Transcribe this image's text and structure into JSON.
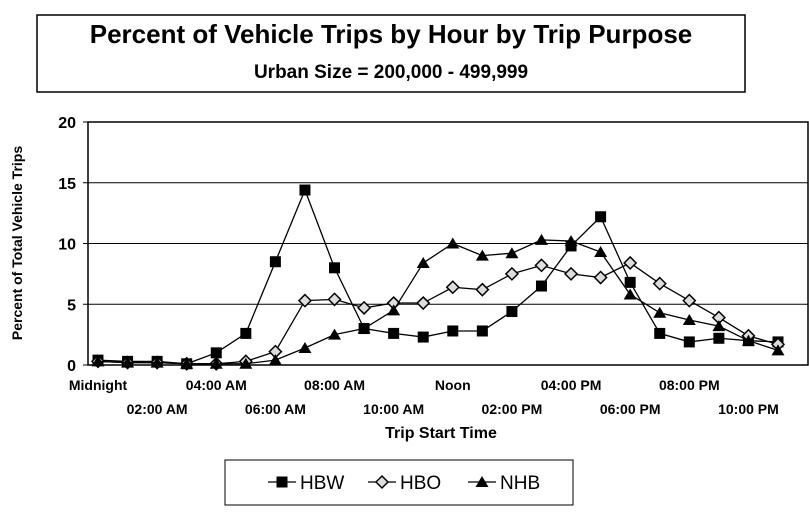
{
  "chart_data": {
    "type": "line",
    "title": "Percent of Vehicle Trips by Hour by Trip Purpose",
    "subtitle": "Urban Size = 200,000 - 499,999",
    "x_label": "Trip Start Time",
    "y_label": "Percent of Total Vehicle Trips",
    "categories": [
      "Midnight",
      null,
      "02:00 AM",
      null,
      "04:00 AM",
      null,
      "06:00 AM",
      null,
      "08:00 AM",
      null,
      "10:00 AM",
      null,
      "Noon",
      null,
      "02:00 PM",
      null,
      "04:00 PM",
      null,
      "06:00 PM",
      null,
      "08:00 PM",
      null,
      "10:00 PM",
      null
    ],
    "series": [
      {
        "name": "HBW",
        "color": "#000000",
        "marker": "square",
        "values": [
          0.4,
          0.3,
          0.3,
          0.1,
          1.0,
          2.6,
          8.5,
          14.4,
          8.0,
          3.0,
          2.6,
          2.3,
          2.8,
          2.8,
          4.4,
          6.5,
          9.8,
          12.2,
          6.8,
          2.6,
          1.9,
          2.2,
          2.0,
          1.9
        ]
      },
      {
        "name": "HBO",
        "color": "#000000",
        "marker": "diamond",
        "values": [
          0.3,
          0.2,
          0.2,
          0.1,
          0.1,
          0.3,
          1.1,
          5.3,
          5.4,
          4.7,
          5.1,
          5.1,
          6.4,
          6.2,
          7.5,
          8.2,
          7.5,
          7.2,
          8.4,
          6.7,
          5.3,
          3.9,
          2.4,
          1.7
        ]
      },
      {
        "name": "NHB",
        "color": "#000000",
        "marker": "triangle",
        "values": [
          0.3,
          0.2,
          0.2,
          0.1,
          0.1,
          0.1,
          0.4,
          1.4,
          2.5,
          3.0,
          4.5,
          8.4,
          10.0,
          9.0,
          9.2,
          10.3,
          10.2,
          9.3,
          5.8,
          4.3,
          3.7,
          3.2,
          2.0,
          1.2
        ]
      }
    ],
    "ylim": [
      0,
      20
    ],
    "yticks": [
      0,
      5,
      10,
      15,
      20
    ],
    "grid": true,
    "legend": "bottom"
  }
}
